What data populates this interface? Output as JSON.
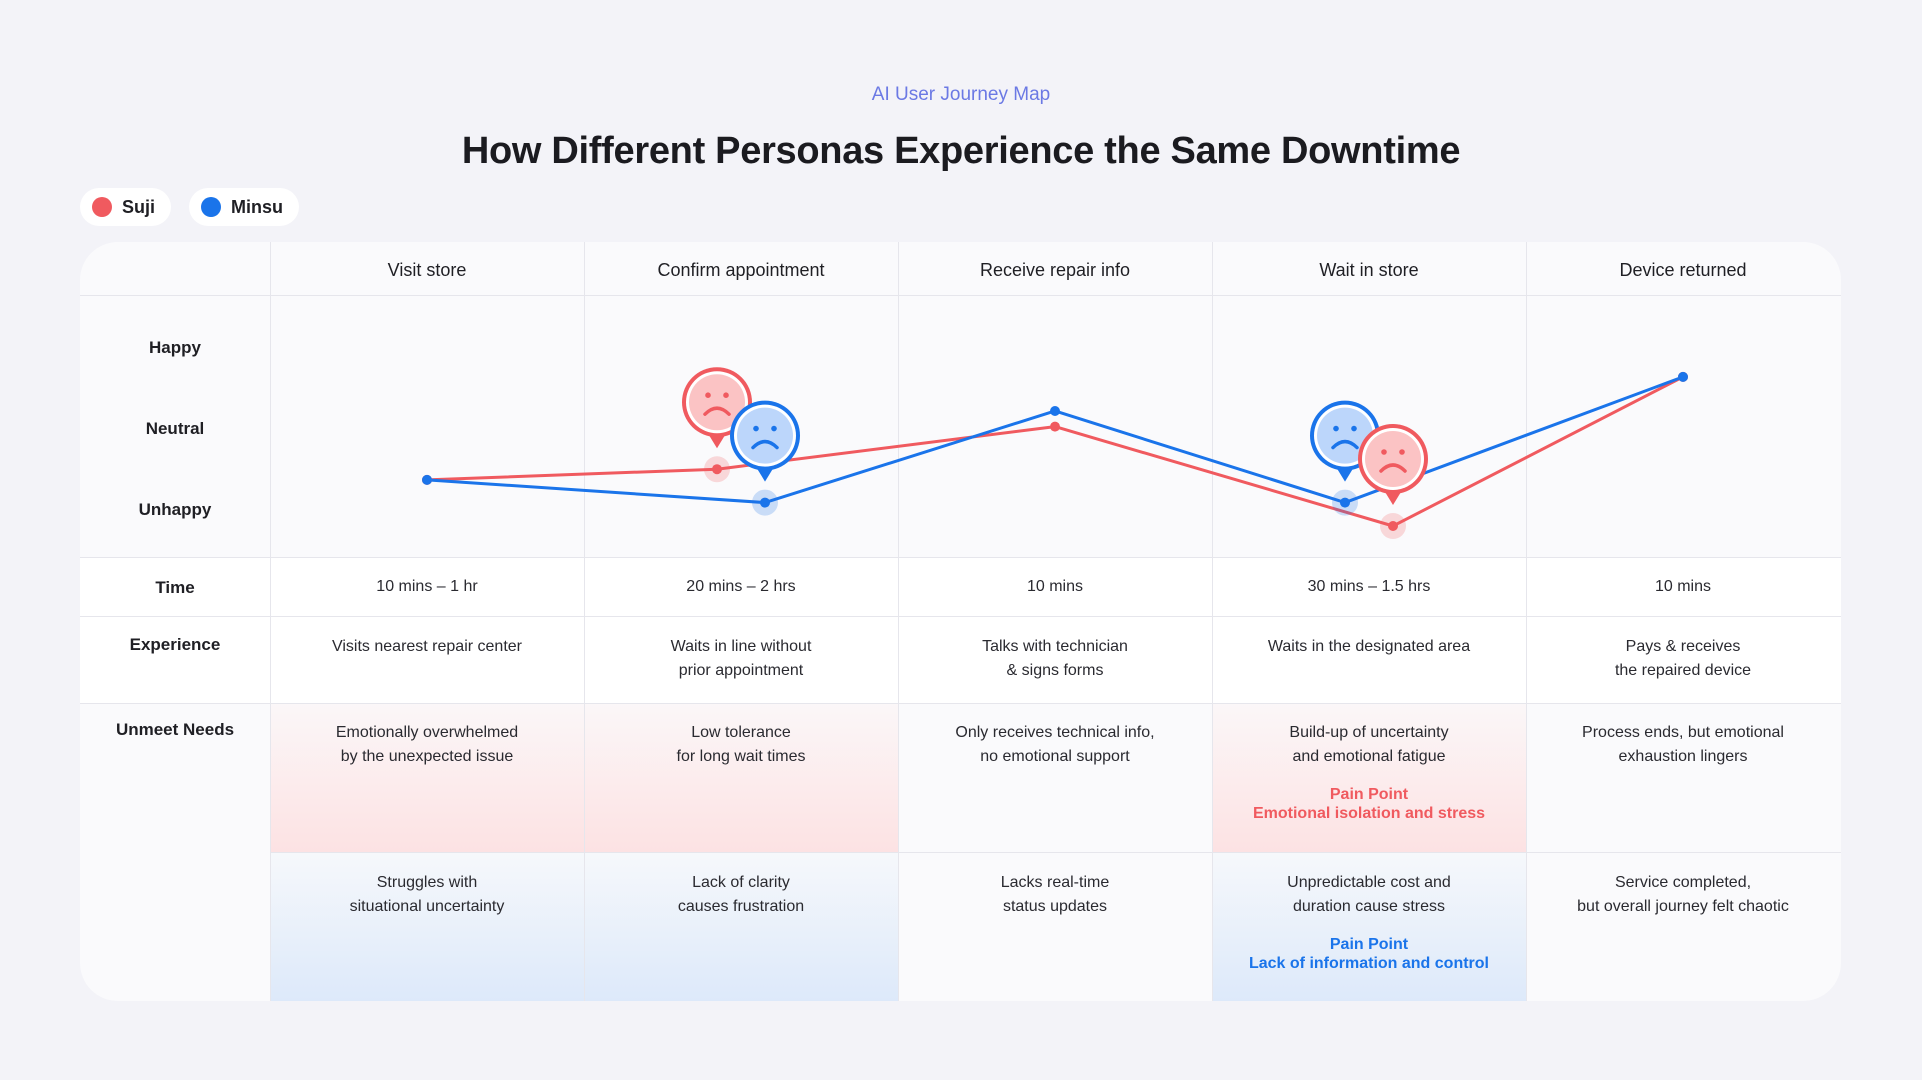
{
  "header": {
    "eyebrow": "AI User Journey Map",
    "title": "How Different Personas Experience the Same Downtime"
  },
  "legend": [
    {
      "name": "Suji",
      "color": "#f05a5f"
    },
    {
      "name": "Minsu",
      "color": "#1a74ea"
    }
  ],
  "stages": [
    "Visit store",
    "Confirm appointment",
    "Receive repair info",
    "Wait in store",
    "Device returned"
  ],
  "row_labels": {
    "happy": "Happy",
    "neutral": "Neutral",
    "unhappy": "Unhappy",
    "time": "Time",
    "experience": "Experience",
    "unmeet": "Unmeet Needs"
  },
  "time": [
    "10 mins – 1 hr",
    "20 mins – 2 hrs",
    "10 mins",
    "30 mins – 1.5 hrs",
    "10 mins"
  ],
  "experience": [
    "Visits nearest repair center",
    "Waits in line without\nprior appointment",
    "Talks with technician\n& signs forms",
    "Waits in the designated area",
    "Pays & receives\nthe repaired device"
  ],
  "unmeet_suji": [
    "Emotionally overwhelmed\nby the unexpected issue",
    "Low tolerance\nfor long wait times",
    "Only receives technical info,\nno emotional support",
    "Build-up of uncertainty\nand emotional fatigue",
    "Process ends, but emotional\nexhaustion lingers"
  ],
  "unmeet_minsu": [
    "Struggles with\nsituational uncertainty",
    "Lack of clarity\ncauses frustration",
    "Lacks real-time\nstatus updates",
    "Unpredictable cost and\nduration cause stress",
    "Service completed,\nbut overall journey felt chaotic"
  ],
  "pain_points": {
    "suji": {
      "stage": 3,
      "label": "Pain Point",
      "text": "Emotional isolation and stress",
      "color": "#f05a5f"
    },
    "minsu": {
      "stage": 3,
      "label": "Pain Point",
      "text": "Lack of information and control",
      "color": "#1a74ea"
    }
  },
  "chart_data": {
    "type": "line",
    "categories": [
      "Visit store",
      "Confirm appointment",
      "Receive repair info",
      "Wait in store",
      "Device returned"
    ],
    "y_scale": [
      "Unhappy",
      "Neutral",
      "Happy"
    ],
    "ylim": [
      -1,
      1
    ],
    "series": [
      {
        "name": "Suji",
        "color": "#f05a5f",
        "values": [
          -0.35,
          -0.2,
          0.4,
          -1.0,
          1.1
        ],
        "sad_markers": [
          1,
          3
        ]
      },
      {
        "name": "Minsu",
        "color": "#1a74ea",
        "values": [
          -0.35,
          -0.67,
          0.62,
          -0.67,
          1.1
        ],
        "sad_markers": [
          1,
          3
        ]
      }
    ]
  }
}
